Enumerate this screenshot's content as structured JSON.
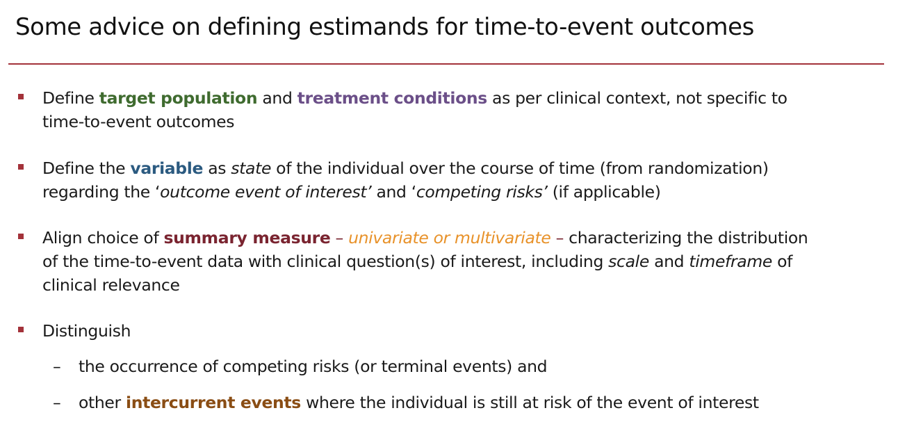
{
  "slide": {
    "title": "Some advice on defining estimands for time-to-event outcomes",
    "colors": {
      "rule": "#a3323a",
      "bullet_marker": "#a3323a",
      "target_population": "#3f6b2f",
      "treatment_conditions": "#6b4f88",
      "variable": "#2b5a80",
      "summary_measure": "#7a2430",
      "univariate_multivariate": "#e8922a",
      "intercurrent_events": "#8a4d14"
    },
    "bullets": [
      {
        "marker_icon": "square-bullet-icon",
        "line1": {
          "t1": "Define ",
          "k1": "target population",
          "t2": " and ",
          "k2": "treatment conditions",
          "t3": " as per clinical context, not specific to"
        },
        "line2": "time-to-event outcomes"
      },
      {
        "marker_icon": "square-bullet-icon",
        "line1": {
          "t1": "Define the ",
          "k1": "variable",
          "t2": " as ",
          "i1": "state",
          "t3": " of the individual over the course of time (from randomization)"
        },
        "line2": {
          "t1": "regarding the ‘",
          "i1": "outcome event of interest’",
          "t2": " and ‘",
          "i2": "competing risks’",
          "t3": " (if applicable)"
        }
      },
      {
        "marker_icon": "square-bullet-icon",
        "line1": {
          "t1": "Align choice of ",
          "k1": "summary measure",
          "t2": " – ",
          "o1": "univariate or multivariate",
          "t3": " –",
          "t4": " characterizing the distribution"
        },
        "line2": {
          "t1": "of the time-to-event data with clinical question(s) of interest, including ",
          "i1": "scale",
          "t2": " and ",
          "i2": "timeframe",
          "t3": " of"
        },
        "line3": "clinical relevance"
      },
      {
        "marker_icon": "square-bullet-icon",
        "line1": "Distinguish",
        "sub": [
          {
            "dash": "–",
            "text": "the occurrence of competing risks (or terminal events) and"
          },
          {
            "dash": "–",
            "t1": "other ",
            "k1": "intercurrent events",
            "t2": " where the individual is still at risk of the event of interest"
          }
        ]
      }
    ]
  }
}
